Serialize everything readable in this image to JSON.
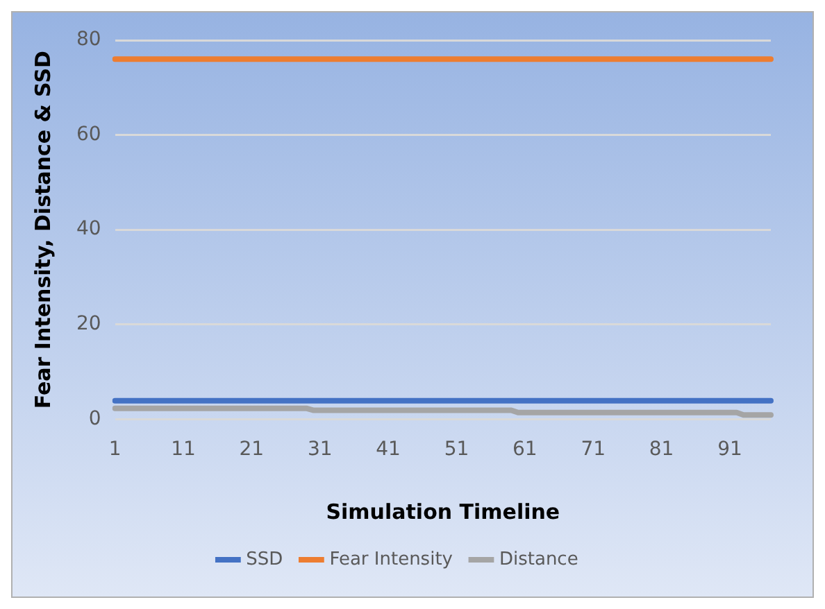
{
  "chart_data": {
    "type": "line",
    "xlabel": "Simulation Timeline",
    "ylabel": "Fear Intensity, Distance & SSD",
    "categories": [
      "1",
      null,
      null,
      null,
      null,
      null,
      null,
      null,
      null,
      null,
      "11",
      null,
      null,
      null,
      null,
      null,
      null,
      null,
      null,
      null,
      "21",
      null,
      null,
      null,
      null,
      null,
      null,
      null,
      null,
      null,
      "31",
      null,
      null,
      null,
      null,
      null,
      null,
      null,
      null,
      null,
      "41",
      null,
      null,
      null,
      null,
      null,
      null,
      null,
      null,
      null,
      "51",
      null,
      null,
      null,
      null,
      null,
      null,
      null,
      null,
      null,
      "61",
      null,
      null,
      null,
      null,
      null,
      null,
      null,
      null,
      null,
      "71",
      null,
      null,
      null,
      null,
      null,
      null,
      null,
      null,
      null,
      "81",
      null,
      null,
      null,
      null,
      null,
      null,
      null,
      null,
      null,
      "91",
      null,
      null,
      null,
      null,
      null,
      null
    ],
    "series": [
      {
        "name": "SSD",
        "color": "#4472c4",
        "values": [
          3.9,
          3.9,
          3.9,
          3.9,
          3.9,
          3.9,
          3.9,
          3.9,
          3.9,
          3.9,
          3.9,
          3.9,
          3.9,
          3.9,
          3.9,
          3.9,
          3.9,
          3.9,
          3.9,
          3.9,
          3.9,
          3.9,
          3.9,
          3.9,
          3.9,
          3.9,
          3.9,
          3.9,
          3.9,
          3.9,
          3.9,
          3.9,
          3.9,
          3.9,
          3.9,
          3.9,
          3.9,
          3.9,
          3.9,
          3.9,
          3.9,
          3.9,
          3.9,
          3.9,
          3.9,
          3.9,
          3.9,
          3.9,
          3.9,
          3.9,
          3.9,
          3.9,
          3.9,
          3.9,
          3.9,
          3.9,
          3.9,
          3.9,
          3.9,
          3.9,
          3.9,
          3.9,
          3.9,
          3.9,
          3.9,
          3.9,
          3.9,
          3.9,
          3.9,
          3.9,
          3.9,
          3.9,
          3.9,
          3.9,
          3.9,
          3.9,
          3.9,
          3.9,
          3.9,
          3.9,
          3.9,
          3.9,
          3.9,
          3.9,
          3.9,
          3.9,
          3.9,
          3.9,
          3.9,
          3.9,
          3.9,
          3.9,
          3.9,
          3.9,
          3.9,
          3.9,
          3.9
        ]
      },
      {
        "name": "Fear Intensity",
        "color": "#ed7d31",
        "values": [
          76,
          76,
          76,
          76,
          76,
          76,
          76,
          76,
          76,
          76,
          76,
          76,
          76,
          76,
          76,
          76,
          76,
          76,
          76,
          76,
          76,
          76,
          76,
          76,
          76,
          76,
          76,
          76,
          76,
          76,
          76,
          76,
          76,
          76,
          76,
          76,
          76,
          76,
          76,
          76,
          76,
          76,
          76,
          76,
          76,
          76,
          76,
          76,
          76,
          76,
          76,
          76,
          76,
          76,
          76,
          76,
          76,
          76,
          76,
          76,
          76,
          76,
          76,
          76,
          76,
          76,
          76,
          76,
          76,
          76,
          76,
          76,
          76,
          76,
          76,
          76,
          76,
          76,
          76,
          76,
          76,
          76,
          76,
          76,
          76,
          76,
          76,
          76,
          76,
          76,
          76,
          76,
          76,
          76,
          76,
          76,
          76
        ]
      },
      {
        "name": "Distance",
        "color": "#a5a5a5",
        "values": [
          2.3,
          2.3,
          2.3,
          2.3,
          2.3,
          2.3,
          2.3,
          2.3,
          2.3,
          2.3,
          2.3,
          2.3,
          2.3,
          2.3,
          2.3,
          2.3,
          2.3,
          2.3,
          2.3,
          2.3,
          2.3,
          2.3,
          2.3,
          2.3,
          2.3,
          2.3,
          2.3,
          2.3,
          2.3,
          1.9,
          1.9,
          1.9,
          1.9,
          1.9,
          1.9,
          1.9,
          1.9,
          1.9,
          1.9,
          1.9,
          1.9,
          1.9,
          1.9,
          1.9,
          1.9,
          1.9,
          1.9,
          1.9,
          1.9,
          1.9,
          1.9,
          1.9,
          1.9,
          1.9,
          1.9,
          1.9,
          1.9,
          1.9,
          1.9,
          1.4,
          1.4,
          1.4,
          1.4,
          1.4,
          1.4,
          1.4,
          1.4,
          1.4,
          1.4,
          1.4,
          1.4,
          1.4,
          1.4,
          1.4,
          1.4,
          1.4,
          1.4,
          1.4,
          1.4,
          1.4,
          1.4,
          1.4,
          1.4,
          1.4,
          1.4,
          1.4,
          1.4,
          1.4,
          1.4,
          1.4,
          1.4,
          1.4,
          0.9,
          0.9,
          0.9,
          0.9,
          0.9
        ]
      }
    ],
    "ylim": [
      0,
      80
    ],
    "yticks": [
      0,
      20,
      40,
      60,
      80
    ],
    "grid": "y",
    "legend": "bottom",
    "marker": "none",
    "line_style": "solid"
  }
}
